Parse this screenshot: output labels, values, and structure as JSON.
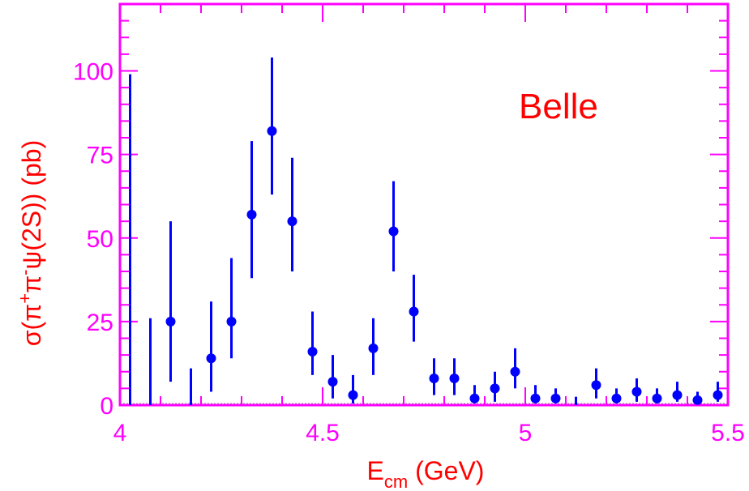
{
  "chart_data": {
    "type": "scatter",
    "title": "",
    "annotation": "Belle",
    "xlabel": {
      "main": "E",
      "sub": "cm",
      "rest": " (GeV)"
    },
    "ylabel": {
      "pre": "σ(π",
      "sup1": "+",
      "mid": "π",
      "sup2": "-",
      "post": "ψ(2S)) (pb)"
    },
    "xlim": [
      4.0,
      5.5
    ],
    "ylim": [
      0,
      100
    ],
    "xticks": [
      {
        "value": 4.0,
        "label": "4"
      },
      {
        "value": 4.5,
        "label": "4.5"
      },
      {
        "value": 5.0,
        "label": "5"
      },
      {
        "value": 5.5,
        "label": "5.5"
      }
    ],
    "yticks": [
      {
        "value": 0,
        "label": "0"
      },
      {
        "value": 25,
        "label": "25"
      },
      {
        "value": 50,
        "label": "50"
      },
      {
        "value": 75,
        "label": "75"
      },
      {
        "value": 100,
        "label": "100"
      }
    ],
    "grid": false,
    "colors": {
      "frame": "#ff00ff",
      "points": "#0000ff",
      "ylabel": "#ff0000",
      "xlabel": "#ff0000",
      "annotation": "#ff0000",
      "ticks": "#ff00ff"
    },
    "points": [
      {
        "x": 4.025,
        "y": null,
        "lo": 0,
        "hi": 99
      },
      {
        "x": 4.075,
        "y": null,
        "lo": 0,
        "hi": 26
      },
      {
        "x": 4.125,
        "y": 25,
        "lo": 7,
        "hi": 55
      },
      {
        "x": 4.175,
        "y": null,
        "lo": 0,
        "hi": 11
      },
      {
        "x": 4.225,
        "y": 14,
        "lo": 4,
        "hi": 31
      },
      {
        "x": 4.275,
        "y": 25,
        "lo": 14,
        "hi": 44
      },
      {
        "x": 4.325,
        "y": 57,
        "lo": 38,
        "hi": 79
      },
      {
        "x": 4.375,
        "y": 82,
        "lo": 63,
        "hi": 104
      },
      {
        "x": 4.425,
        "y": 55,
        "lo": 40,
        "hi": 74
      },
      {
        "x": 4.475,
        "y": 16,
        "lo": 9,
        "hi": 28
      },
      {
        "x": 4.525,
        "y": 7,
        "lo": 2,
        "hi": 15
      },
      {
        "x": 4.575,
        "y": 3,
        "lo": 0.5,
        "hi": 9
      },
      {
        "x": 4.625,
        "y": 17,
        "lo": 9,
        "hi": 26
      },
      {
        "x": 4.675,
        "y": 52,
        "lo": 40,
        "hi": 67
      },
      {
        "x": 4.725,
        "y": 28,
        "lo": 19,
        "hi": 39
      },
      {
        "x": 4.775,
        "y": 8,
        "lo": 3,
        "hi": 14
      },
      {
        "x": 4.825,
        "y": 8,
        "lo": 3,
        "hi": 14
      },
      {
        "x": 4.875,
        "y": 2,
        "lo": 0.5,
        "hi": 6
      },
      {
        "x": 4.925,
        "y": 5,
        "lo": 1,
        "hi": 10
      },
      {
        "x": 4.975,
        "y": 10,
        "lo": 5,
        "hi": 17
      },
      {
        "x": 5.025,
        "y": 2,
        "lo": 0.5,
        "hi": 6
      },
      {
        "x": 5.075,
        "y": 2,
        "lo": 0.5,
        "hi": 5
      },
      {
        "x": 5.125,
        "y": null,
        "lo": 0,
        "hi": 2.5
      },
      {
        "x": 5.175,
        "y": 6,
        "lo": 2,
        "hi": 11
      },
      {
        "x": 5.225,
        "y": 2,
        "lo": 0.5,
        "hi": 5
      },
      {
        "x": 5.275,
        "y": 4,
        "lo": 1,
        "hi": 8
      },
      {
        "x": 5.325,
        "y": 2,
        "lo": 0.5,
        "hi": 5
      },
      {
        "x": 5.375,
        "y": 3,
        "lo": 1,
        "hi": 7
      },
      {
        "x": 5.425,
        "y": 1.5,
        "lo": 0.5,
        "hi": 4
      },
      {
        "x": 5.475,
        "y": 3,
        "lo": 1,
        "hi": 7
      }
    ]
  }
}
